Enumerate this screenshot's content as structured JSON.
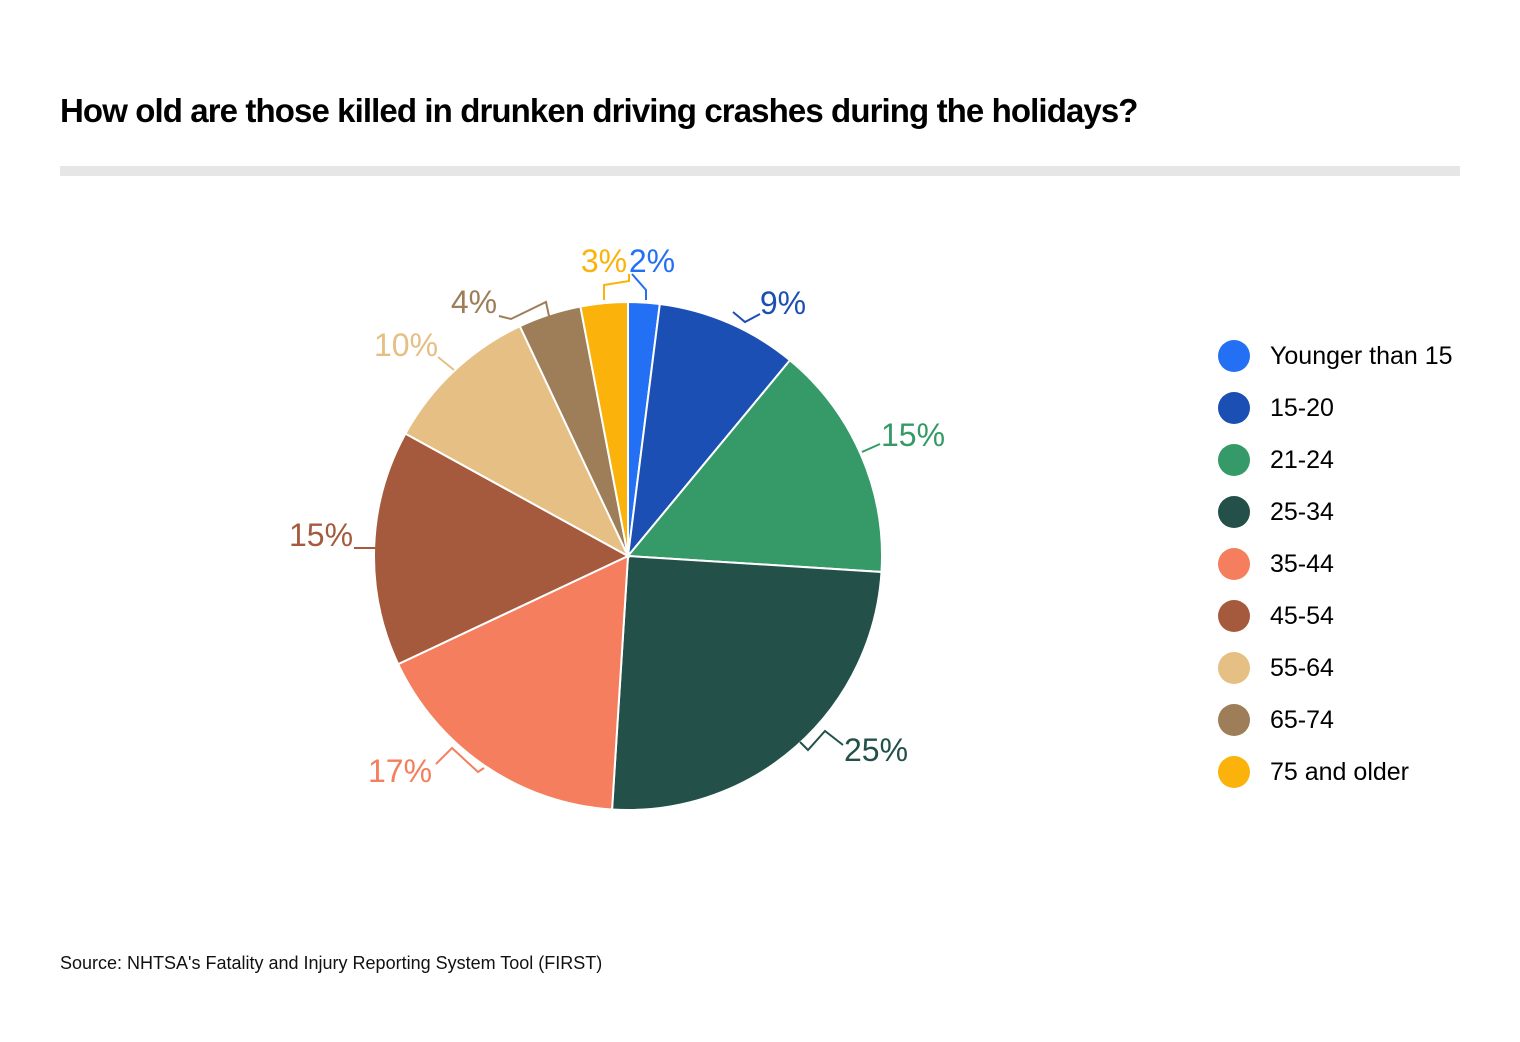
{
  "title": "How old are those killed in drunken driving crashes during the holidays?",
  "source": "Source: NHTSA's Fatality and Injury Reporting System Tool (FIRST)",
  "chart_data": {
    "type": "pie",
    "title": "How old are those killed in drunken driving crashes during the holidays?",
    "categories": [
      "Younger than 15",
      "15-20",
      "21-24",
      "25-34",
      "35-44",
      "45-54",
      "55-64",
      "65-74",
      "75 and older"
    ],
    "values": [
      2,
      9,
      15,
      25,
      17,
      15,
      10,
      4,
      3
    ],
    "labels": [
      "2%",
      "9%",
      "15%",
      "25%",
      "17%",
      "15%",
      "10%",
      "4%",
      "3%"
    ],
    "colors": [
      "#2470f5",
      "#1c4fb3",
      "#359a68",
      "#23514a",
      "#f47e5d",
      "#a65a3d",
      "#e5bf84",
      "#9d7e58",
      "#fbb30c"
    ],
    "start_angle_deg": 0,
    "direction": "clockwise",
    "legend_position": "right"
  },
  "legend": [
    {
      "label": "Younger than 15",
      "color": "#2470f5"
    },
    {
      "label": "15-20",
      "color": "#1c4fb3"
    },
    {
      "label": "21-24",
      "color": "#359a68"
    },
    {
      "label": "25-34",
      "color": "#23514a"
    },
    {
      "label": "35-44",
      "color": "#f47e5d"
    },
    {
      "label": "45-54",
      "color": "#a65a3d"
    },
    {
      "label": "55-64",
      "color": "#e5bf84"
    },
    {
      "label": "65-74",
      "color": "#9d7e58"
    },
    {
      "label": "75 and older",
      "color": "#fbb30c"
    }
  ]
}
